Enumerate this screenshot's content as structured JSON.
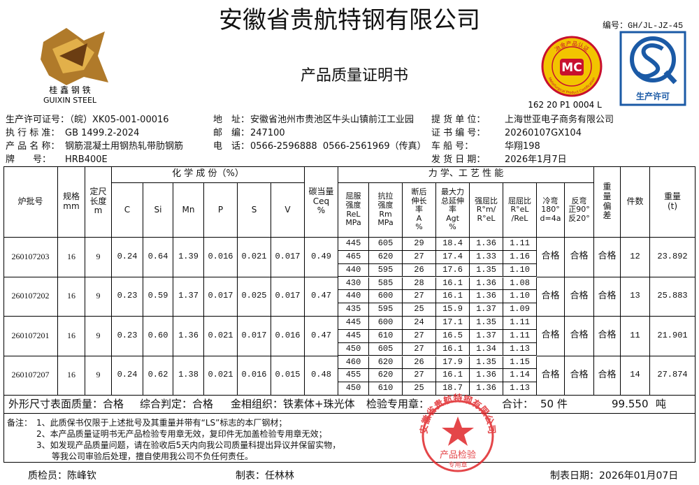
{
  "header": {
    "company": "安徽省贵航特钢有限公司",
    "doc_no": "编号：GH/JL-JZ-45",
    "title": "产品质量证明书",
    "logo": {
      "cn": "桂 鑫 钢 铁",
      "en": "GUIXIN STEEL"
    },
    "mc_logo": {
      "arc": "冶金产品认证",
      "mark": "MC",
      "en": "Metallurgical Product Certification",
      "code": "162 20 P1 0004 L"
    },
    "qs_logo": {
      "label": "生产许可"
    }
  },
  "info": [
    {
      "left": {
        "label": "生产许可证号：",
        "value": "（皖）XK05-001-00016"
      },
      "middle": {
        "label": "地　址：",
        "value": "安徽省池州市贵池区牛头山镇前江工业园"
      },
      "right": {
        "label": "提 货 单 位：",
        "value": "上海世亚电子商务有限公司"
      }
    },
    {
      "left": {
        "label": "执 行 标 准：",
        "value": "GB 1499.2-2024"
      },
      "middle": {
        "label": "邮　编：",
        "value": "247100"
      },
      "right": {
        "label": "证 书 编 号：",
        "value": "20260107GX104"
      }
    },
    {
      "left": {
        "label": "产 品 名 称：",
        "value": "钢筋混凝土用钢热轧带肋钢筋"
      },
      "middle": {
        "label": "电　话：",
        "value": "0566-2596888  0566-2561969（传真）"
      },
      "right": {
        "label": "车 船 号：",
        "value": "华翔198"
      }
    },
    {
      "left": {
        "label": "牌　　号：",
        "value": "HRB400E"
      },
      "right": {
        "label": "发 货 日 期：",
        "value": "2026年1月7日"
      }
    }
  ],
  "table": {
    "group_chem": "化 学 成 份（%）",
    "group_mech": "力 学、工 艺 性 能",
    "columns": [
      "炉批号",
      "规格\nmm",
      "定尺\n长度\nm",
      "C",
      "Si",
      "Mn",
      "P",
      "S",
      "V",
      "碳当量\nCeq\n%",
      "屈服\n强度\nReL\nMPa",
      "抗拉\n强度\nRm\nMPa",
      "断后\n伸长\n率\nA\n%",
      "最大力\n总延伸\n率\nAgt\n%",
      "强屈比\nR°m/\nR°eL",
      "屈屈比\nR°eL\n/ReL",
      "冷弯\n180°\nd=4a",
      "反弯\n正90°\n反20°",
      "重\n量\n偏\n差",
      "件数",
      "重量\n(t)"
    ],
    "batches": [
      {
        "lot": "260107203",
        "spec": "16",
        "length": "9",
        "chem": [
          "0.24",
          "0.64",
          "1.39",
          "0.016",
          "0.021",
          "0.017"
        ],
        "ceq": "0.49",
        "mech": [
          [
            "445",
            "605",
            "29",
            "18.4",
            "1.36",
            "1.11"
          ],
          [
            "465",
            "620",
            "27",
            "17.4",
            "1.33",
            "1.16"
          ],
          [
            "440",
            "595",
            "26",
            "17.6",
            "1.35",
            "1.10"
          ]
        ],
        "bend": "合格",
        "rebend": "合格",
        "deviation": "合格",
        "pieces": "12",
        "weight": "23.892"
      },
      {
        "lot": "260107202",
        "spec": "16",
        "length": "9",
        "chem": [
          "0.23",
          "0.59",
          "1.37",
          "0.017",
          "0.025",
          "0.017"
        ],
        "ceq": "0.47",
        "mech": [
          [
            "430",
            "585",
            "28",
            "16.1",
            "1.36",
            "1.08"
          ],
          [
            "440",
            "600",
            "27",
            "16.1",
            "1.36",
            "1.10"
          ],
          [
            "435",
            "595",
            "25",
            "15.9",
            "1.37",
            "1.09"
          ]
        ],
        "bend": "合格",
        "rebend": "合格",
        "deviation": "合格",
        "pieces": "13",
        "weight": "25.883"
      },
      {
        "lot": "260107201",
        "spec": "16",
        "length": "9",
        "chem": [
          "0.23",
          "0.60",
          "1.36",
          "0.021",
          "0.017",
          "0.016"
        ],
        "ceq": "0.47",
        "mech": [
          [
            "445",
            "600",
            "24",
            "17.1",
            "1.35",
            "1.11"
          ],
          [
            "445",
            "610",
            "27",
            "16.5",
            "1.37",
            "1.11"
          ],
          [
            "450",
            "605",
            "27",
            "16.1",
            "1.34",
            "1.13"
          ]
        ],
        "bend": "合格",
        "rebend": "合格",
        "deviation": "合格",
        "pieces": "11",
        "weight": "21.901"
      },
      {
        "lot": "260107207",
        "spec": "16",
        "length": "9",
        "chem": [
          "0.24",
          "0.62",
          "1.38",
          "0.021",
          "0.016",
          "0.015"
        ],
        "ceq": "0.48",
        "mech": [
          [
            "460",
            "620",
            "26",
            "17.9",
            "1.35",
            "1.15"
          ],
          [
            "455",
            "620",
            "27",
            "16.1",
            "1.36",
            "1.14"
          ],
          [
            "450",
            "610",
            "25",
            "18.7",
            "1.36",
            "1.13"
          ]
        ],
        "bend": "合格",
        "rebend": "合格",
        "deviation": "合格",
        "pieces": "14",
        "weight": "27.874"
      }
    ]
  },
  "summary": {
    "appearance": "外形尺寸表面质量：合格",
    "judgement": "综合判定：合格",
    "structure": "金相组织：铁素体+珠光体",
    "seal": "检验专用章：",
    "total_label": "合计：",
    "pieces": "50 件",
    "weight": "99.550",
    "unit": "吨"
  },
  "notes": {
    "label": "备注：",
    "lines": [
      "1、此质保书仅限于上述批号及其重量并带有“LS”标志的本厂钢材；",
      "2、本产品质量证明书无产品检验专用章无效，复印件无加盖检验专用章无效；",
      "3、如发现产品质量问题，请在验收后5天内向我公司质量科提出异议并保留实物，",
      "等我公司审验后处理，擅自使用我公司不负任何责任。"
    ]
  },
  "stamp": {
    "arc": "安徽省贵航特钢有限公司",
    "line1": "产品检验",
    "line2": "专用章"
  },
  "footer": {
    "inspector": "质检员：陈峰钦",
    "tabulator": "制表：任林林",
    "date": "制表日期：2026年01月07日"
  }
}
